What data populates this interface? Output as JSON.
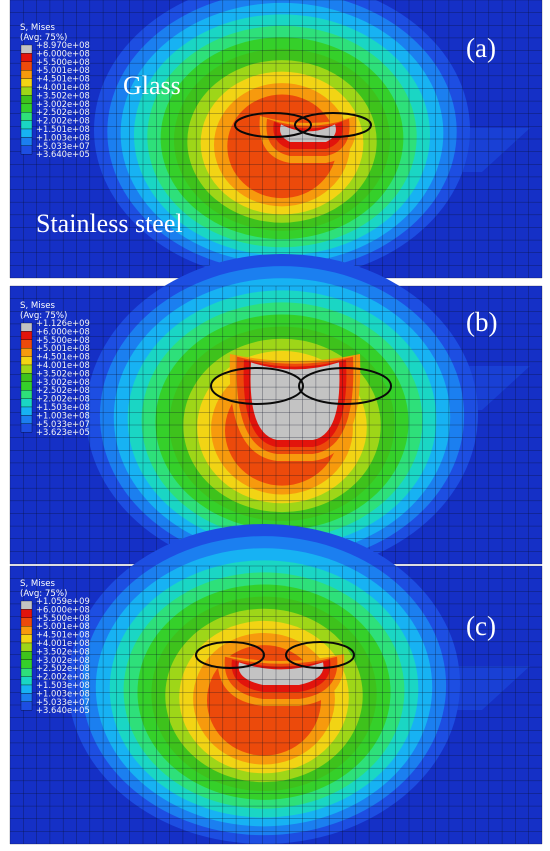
{
  "colors": {
    "background": "#1530c6",
    "contours": [
      "#1d4ee2",
      "#1b7ff0",
      "#17b2f3",
      "#1ad6c4",
      "#2ee07a",
      "#35d02a",
      "#3ec21c",
      "#9ed618",
      "#f2d414",
      "#f79a0d",
      "#ec4a0b",
      "#e2140c",
      "#c3c3c3"
    ],
    "mesh": "#0a0f24",
    "ellipse": "#0a0a0a"
  },
  "legend_swatches": [
    "#c3c3c3",
    "#e2140c",
    "#ec4a0b",
    "#f79a0d",
    "#f2d414",
    "#9ed618",
    "#3ec21c",
    "#35d02a",
    "#2ee07a",
    "#1ad6c4",
    "#17b2f3",
    "#1b7ff0",
    "#1d4ee2"
  ],
  "panels": [
    {
      "label": "(a)",
      "legend": {
        "title": "S, Mises",
        "subtitle": "(Avg: 75%)",
        "values": [
          "+8.970e+08",
          "+6.000e+08",
          "+5.500e+08",
          "+5.001e+08",
          "+4.501e+08",
          "+4.001e+08",
          "+3.502e+08",
          "+3.002e+08",
          "+2.502e+08",
          "+2.002e+08",
          "+1.501e+08",
          "+1.003e+08",
          "+5.033e+07",
          "+3.640e+05"
        ]
      },
      "glass_label": "Glass",
      "steel_label": "Stainless steel"
    },
    {
      "label": "(b)",
      "legend": {
        "title": "S, Mises",
        "subtitle": "(Avg: 75%)",
        "values": [
          "+1.126e+09",
          "+6.000e+08",
          "+5.500e+08",
          "+5.001e+08",
          "+4.501e+08",
          "+4.001e+08",
          "+3.502e+08",
          "+3.002e+08",
          "+2.502e+08",
          "+2.002e+08",
          "+1.503e+08",
          "+1.003e+08",
          "+5.033e+07",
          "+3.623e+05"
        ]
      }
    },
    {
      "label": "(c)",
      "legend": {
        "title": "S, Mises",
        "subtitle": "(Avg: 75%)",
        "values": [
          "+1.059e+09",
          "+6.000e+08",
          "+5.500e+08",
          "+5.001e+08",
          "+4.501e+08",
          "+4.001e+08",
          "+3.502e+08",
          "+3.002e+08",
          "+2.502e+08",
          "+2.002e+08",
          "+1.503e+08",
          "+1.003e+08",
          "+5.033e+07",
          "+3.640e+05"
        ]
      }
    }
  ]
}
